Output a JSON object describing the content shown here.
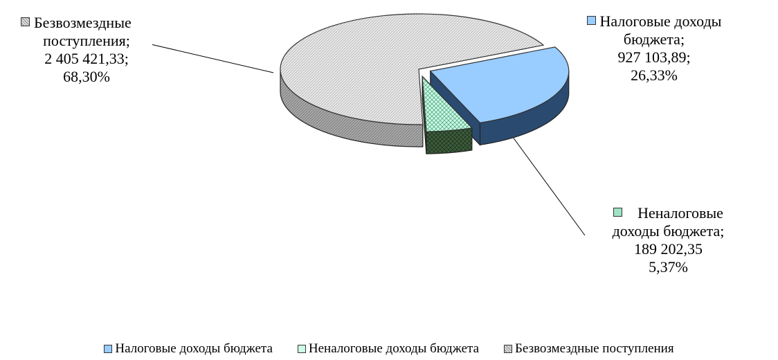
{
  "chart_data": {
    "type": "pie",
    "style": "3d-exploded",
    "slices": [
      {
        "name": "Налоговые доходы бюджета",
        "value": 927103.89,
        "percent": 26.33,
        "value_text": "927 103,89;",
        "percent_text": "26,33%",
        "label_lines": [
          "Налоговые доходы",
          "бюджета;",
          "927 103,89;",
          "26,33%"
        ],
        "color": "#99CCFF",
        "side_color": "#1F3A5F",
        "pattern": "none"
      },
      {
        "name": "Неналоговые доходы бюджета",
        "value": 189202.35,
        "percent": 5.37,
        "value_text": "189 202,35",
        "percent_text": "5,37%",
        "label_lines": [
          "Неналоговые",
          "доходы бюджета;",
          "189 202,35",
          "5,37%"
        ],
        "color": "#CCFFE6",
        "side_color": "#3E5E3E",
        "pattern": "crosshatch"
      },
      {
        "name": "Безвозмездные поступления",
        "value": 2405421.33,
        "percent": 68.3,
        "value_text": "2 405 421,33;",
        "percent_text": "68,30%",
        "label_lines": [
          "Безвозмездные",
          "поступления;",
          "2 405 421,33;",
          "68,30%"
        ],
        "color": "#E6E6E6",
        "side_color": "#9A9A9A",
        "pattern": "diagonal"
      }
    ],
    "legend": {
      "placement": "bottom",
      "entries": [
        "Налоговые доходы бюджета",
        "Неналоговые доходы бюджета",
        "Безвозмездные поступления"
      ]
    }
  }
}
